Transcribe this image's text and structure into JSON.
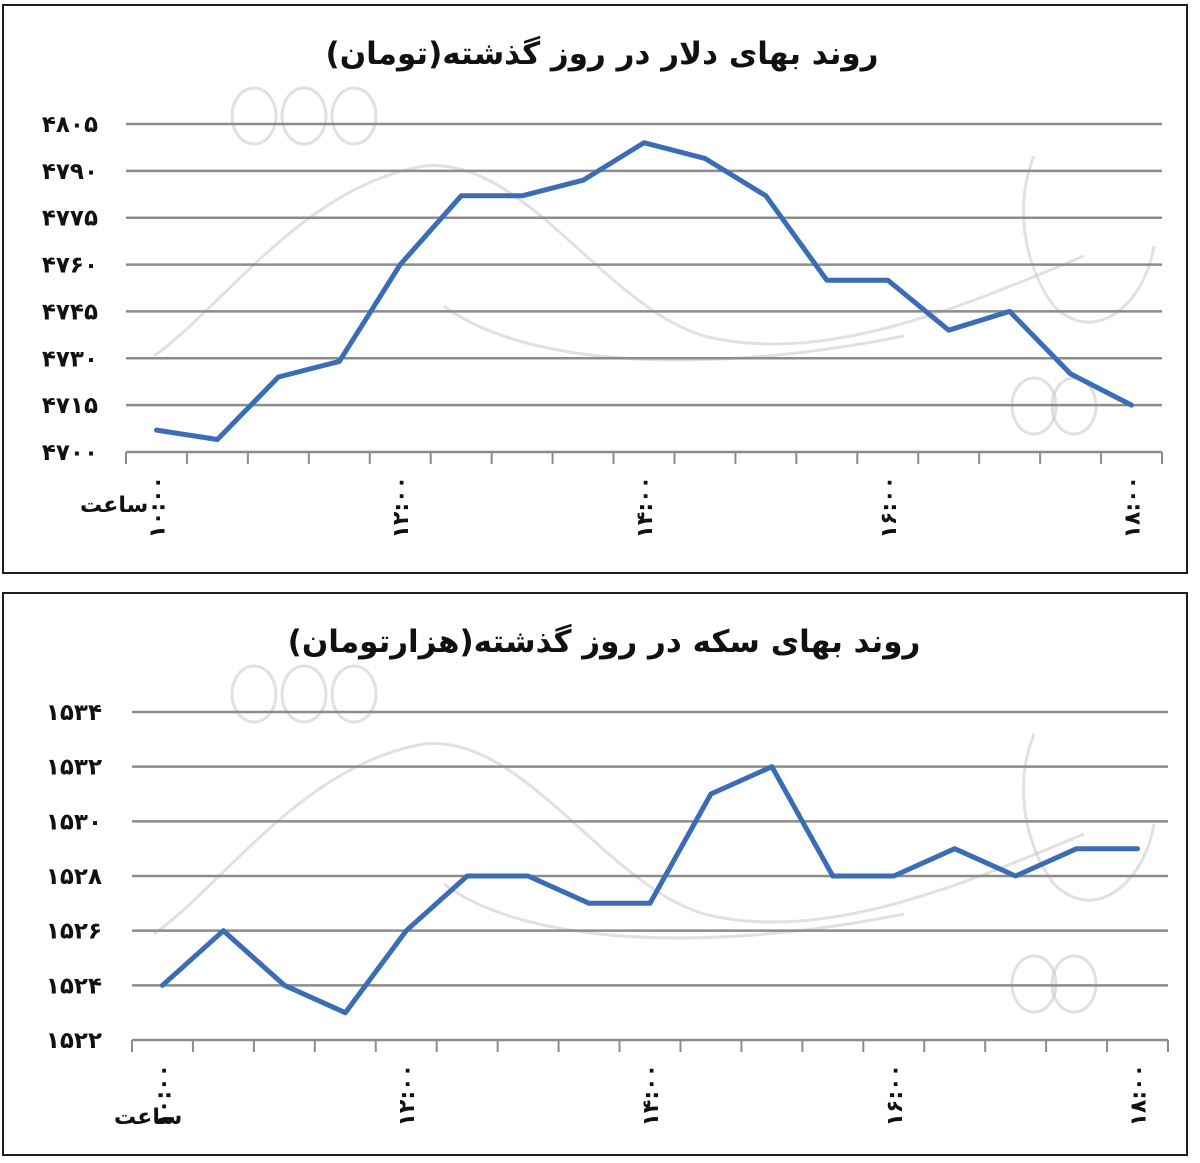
{
  "chart_data": [
    {
      "type": "line",
      "title": "روند بهای دلار در روز گذشته(تومان)",
      "xlabel": "ساعت",
      "ylabel": "",
      "ylim": [
        4700,
        4805
      ],
      "yticks": [
        4700,
        4715,
        4730,
        4745,
        4760,
        4775,
        4790,
        4805
      ],
      "ytick_labels": [
        "۴۷۰۰",
        "۴۷۱۵",
        "۴۷۳۰",
        "۴۷۴۵",
        "۴۷۶۰",
        "۴۷۷۵",
        "۴۷۹۰",
        "۴۸۰۵"
      ],
      "x_tick_labels": [
        "۱۰:۰۰",
        "۱۲:۰۰",
        "۱۴:۰۰",
        "۱۶:۰۰",
        "۱۸:۰۰"
      ],
      "grid": true,
      "color": "#3a6db5",
      "x_count": 17,
      "series": [
        {
          "values": [
            4707,
            4704,
            4724,
            4729,
            4760,
            4782,
            4782,
            4787,
            4799,
            4794,
            4782,
            4755,
            4755,
            4739,
            4745,
            4725,
            4715
          ]
        }
      ]
    },
    {
      "type": "line",
      "title": "روند بهای سکه در روز گذشته(هزارتومان)",
      "xlabel": "ساعت",
      "ylabel": "",
      "ylim": [
        1522,
        1534
      ],
      "yticks": [
        1522,
        1524,
        1526,
        1528,
        1530,
        1532,
        1534
      ],
      "ytick_labels": [
        "۱۵۲۲",
        "۱۵۲۴",
        "۱۵۲۶",
        "۱۵۲۸",
        "۱۵۳۰",
        "۱۵۳۲",
        "۱۵۳۴"
      ],
      "x_tick_labels": [
        "۱۰:۰۰",
        "۱۲:۰۰",
        "۱۴:۰۰",
        "۱۶:۰۰",
        "۱۸:۰۰"
      ],
      "grid": true,
      "color": "#3a6db5",
      "x_count": 17,
      "series": [
        {
          "values": [
            1524,
            1526,
            1524,
            1523,
            1526,
            1528,
            1528,
            1527,
            1527,
            1531,
            1532,
            1528,
            1528,
            1529,
            1528,
            1529,
            1529
          ]
        }
      ]
    }
  ]
}
